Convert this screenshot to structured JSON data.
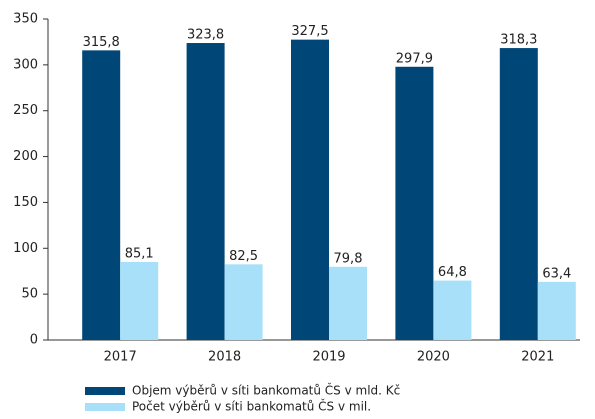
{
  "chart_data": {
    "type": "bar",
    "categories": [
      "2017",
      "2018",
      "2019",
      "2020",
      "2021"
    ],
    "series": [
      {
        "name": "Objem výběrů v síti bankomatů ČS v mld. Kč",
        "color": "#004677",
        "values": [
          315.8,
          323.8,
          327.5,
          297.9,
          318.3
        ],
        "value_labels": [
          "315,8",
          "323,8",
          "327,5",
          "297,9",
          "318,3"
        ]
      },
      {
        "name": "Počet výběrů v síti bankomatů ČS v mil.",
        "color": "#a8e0fa",
        "values": [
          85.1,
          82.5,
          79.8,
          64.8,
          63.4
        ],
        "value_labels": [
          "85,1",
          "82,5",
          "79,8",
          "64,8",
          "63,4"
        ]
      }
    ],
    "ylim": [
      0,
      350
    ],
    "yticks": [
      0,
      50,
      100,
      150,
      200,
      250,
      300,
      350
    ]
  }
}
